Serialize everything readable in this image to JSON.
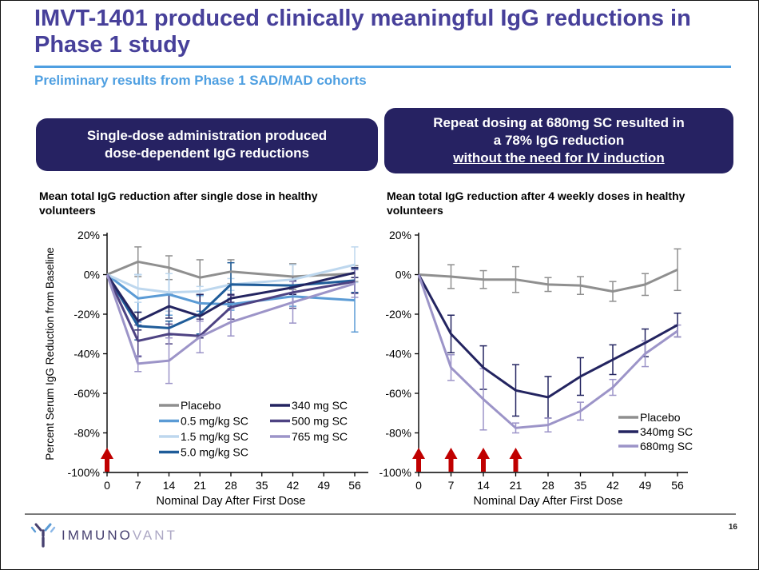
{
  "slide": {
    "title": "IMVT-1401 produced clinically meaningful IgG reductions in Phase 1 study",
    "subtitle": "Preliminary results from Phase 1 SAD/MAD cohorts",
    "page_number": "16",
    "logo_text_primary": "IMMUNO",
    "logo_text_secondary": "VANT"
  },
  "callouts": {
    "left": {
      "line1": "Single-dose administration produced",
      "line2": "dose-dependent IgG reductions"
    },
    "right": {
      "line1": "Repeat dosing at 680mg SC resulted in",
      "line2": "a 78% IgG reduction",
      "underline": "without the need for IV induction"
    }
  },
  "colors": {
    "title_color": "#47409A",
    "accent_blue": "#4E9FE1",
    "callout_bg": "#262262",
    "callout_text": "#FFFFFF",
    "arrow_red": "#C00000",
    "logo_primary": "#474170",
    "logo_secondary": "#ACA7C4"
  },
  "chart_data": [
    {
      "type": "line",
      "title": "Mean total IgG reduction after single dose in healthy volunteers",
      "xlabel": "Nominal Day After First Dose",
      "ylabel": "Percent Serum IgG Reduction from Baseline",
      "x": [
        0,
        7,
        14,
        21,
        28,
        42,
        56
      ],
      "x_ticks": [
        0,
        7,
        14,
        21,
        28,
        35,
        42,
        49,
        56
      ],
      "xlim": [
        0,
        56
      ],
      "ylim": [
        -100,
        20
      ],
      "y_tick_step": 20,
      "grid": false,
      "legend_position": "inside-bottom-two-columns",
      "dose_arrow_days": [
        0
      ],
      "series": [
        {
          "name": "Placebo",
          "color": "#8F8F8F",
          "values": [
            0,
            6.5,
            3.5,
            -1.5,
            1.5,
            -1,
            0.5
          ],
          "err": [
            0,
            7.5,
            6,
            9,
            6,
            6.5,
            4
          ]
        },
        {
          "name": "0.5 mg/kg SC",
          "color": "#5B9BD5",
          "values": [
            0,
            -12,
            -10,
            -14.5,
            -15,
            -11,
            -13
          ],
          "err": [
            0,
            12,
            10.5,
            4,
            3,
            5,
            16
          ]
        },
        {
          "name": "1.5 mg/kg SC",
          "color": "#BDD7EE",
          "values": [
            0,
            -7,
            -9,
            -8.5,
            -5,
            -2.5,
            5
          ],
          "err": [
            0,
            7,
            9.5,
            2.5,
            3,
            7.5,
            9
          ]
        },
        {
          "name": "5.0 mg/kg SC",
          "color": "#1F5C99",
          "values": [
            0,
            -26,
            -27,
            -20,
            -5,
            -5.5,
            -3
          ],
          "err": [
            0,
            7,
            3.5,
            10,
            11,
            4.5,
            6
          ]
        },
        {
          "name": "340 mg SC",
          "color": "#232460",
          "values": [
            0,
            -23.5,
            -16,
            -21,
            -12,
            -6.5,
            1
          ],
          "err": [
            0,
            4.5,
            6,
            11,
            2,
            3.5,
            2.5
          ]
        },
        {
          "name": "500 mg SC",
          "color": "#4E4383",
          "values": [
            0,
            -33.5,
            -30,
            -31,
            -16.5,
            -9,
            -3.5
          ],
          "err": [
            0,
            8,
            5,
            8.5,
            6,
            8,
            6
          ]
        },
        {
          "name": "765 mg SC",
          "color": "#9C94C8",
          "values": [
            0,
            -45,
            -43.5,
            -31.5,
            -24,
            -14,
            -4.5
          ],
          "err": [
            0,
            4,
            11.5,
            8,
            7,
            10.5,
            7
          ]
        }
      ]
    },
    {
      "type": "line",
      "title": "Mean total IgG reduction after 4 weekly doses in healthy volunteers",
      "xlabel": "Nominal Day After First Dose",
      "ylabel": "",
      "x": [
        0,
        7,
        14,
        21,
        28,
        35,
        42,
        49,
        56
      ],
      "x_ticks": [
        0,
        7,
        14,
        21,
        28,
        35,
        42,
        49,
        56
      ],
      "xlim": [
        0,
        56
      ],
      "ylim": [
        -100,
        20
      ],
      "y_tick_step": 20,
      "grid": false,
      "legend_position": "inside-bottom-right",
      "dose_arrow_days": [
        0,
        7,
        14,
        21
      ],
      "series": [
        {
          "name": "Placebo",
          "color": "#8F8F8F",
          "values": [
            0,
            -1,
            -2.5,
            -2.5,
            -5,
            -5.5,
            -8.5,
            -5,
            2.5
          ],
          "err": [
            0,
            6,
            4.5,
            6.5,
            3.5,
            4.5,
            5,
            5.5,
            10.5
          ]
        },
        {
          "name": "340mg SC",
          "color": "#232460",
          "values": [
            0,
            -30,
            -47,
            -58.5,
            -62,
            -51.5,
            -43,
            -34.5,
            -25.5
          ],
          "err": [
            0,
            9.5,
            11,
            13,
            10.5,
            9.5,
            7.5,
            7,
            6
          ]
        },
        {
          "name": "680mg SC",
          "color": "#9C94C8",
          "values": [
            0,
            -47,
            -63,
            -77.5,
            -76,
            -69,
            -57,
            -40,
            -28.5
          ],
          "err": [
            0,
            6.5,
            15.5,
            2.5,
            3.5,
            4.5,
            4,
            6.5,
            3
          ]
        }
      ]
    }
  ]
}
